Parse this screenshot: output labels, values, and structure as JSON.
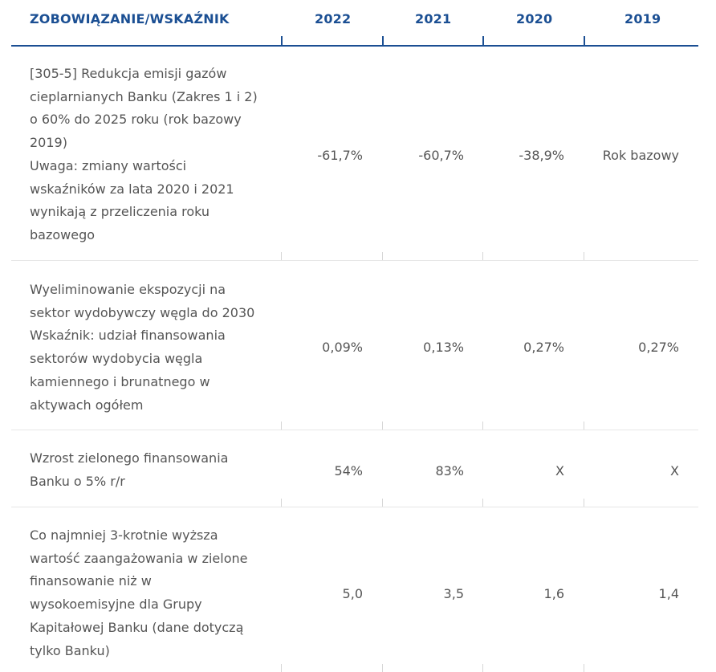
{
  "header": {
    "col_label": "ZOBOWIĄZANIE/WSKAŹNIK",
    "years": [
      "2022",
      "2021",
      "2020",
      "2019"
    ]
  },
  "rows": [
    {
      "lines": [
        "[305-5] Redukcja emisji gazów",
        "cieplarnianych Banku (Zakres 1 i 2)",
        "o 60% do 2025 roku (rok bazowy",
        "2019)",
        "Uwaga: zmiany wartości",
        "wskaźników za lata 2020 i 2021",
        "wynikają z przeliczenia roku",
        "bazowego"
      ],
      "values": [
        "-61,7%",
        "-60,7%",
        "-38,9%",
        "Rok bazowy"
      ]
    },
    {
      "lines": [
        "Wyeliminowanie ekspozycji na",
        "sektor wydobywczy węgla do 2030",
        "Wskaźnik: udział finansowania",
        "sektorów wydobycia węgla",
        "kamiennego i brunatnego w",
        "aktywach ogółem"
      ],
      "values": [
        "0,09%",
        "0,13%",
        "0,27%",
        "0,27%"
      ]
    },
    {
      "lines": [
        "Wzrost zielonego finansowania",
        "Banku o 5% r/r"
      ],
      "values": [
        "54%",
        "83%",
        "X",
        "X"
      ]
    },
    {
      "lines": [
        "Co najmniej 3-krotnie wyższa",
        "wartość zaangażowania w zielone",
        "finansowanie niż w",
        "wysokoemisyjne dla Grupy",
        "Kapitałowej Banku (dane dotyczą",
        "tylko Banku)"
      ],
      "values": [
        "5,0",
        "3,5",
        "1,6",
        "1,4"
      ]
    }
  ]
}
